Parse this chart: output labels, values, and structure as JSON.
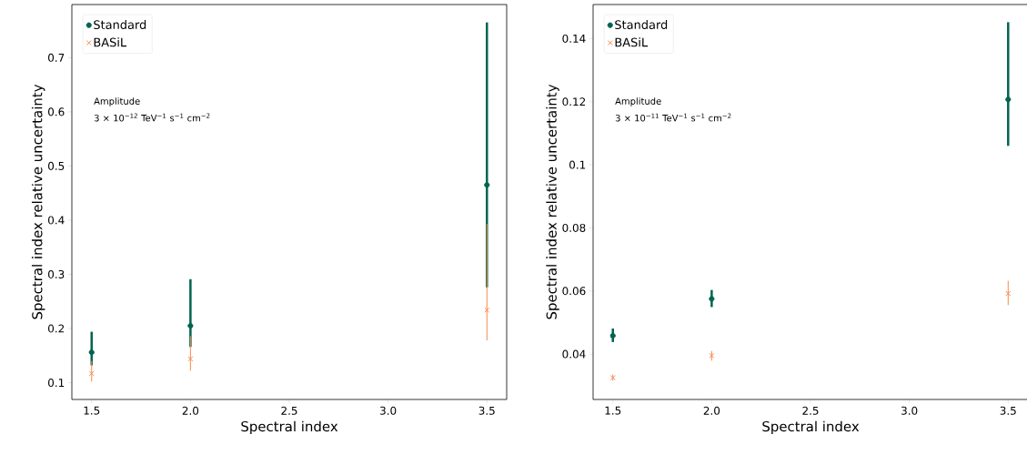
{
  "chart_data": [
    {
      "type": "scatter",
      "xlabel": "Spectral index",
      "ylabel": "Spectral index relative uncertainty",
      "x": [
        1.5,
        2.0,
        3.5
      ],
      "xlim": [
        1.4,
        3.6
      ],
      "ylim": [
        0.069,
        0.798
      ],
      "xticks": [
        {
          "value": 1.5,
          "label": "1.5"
        },
        {
          "value": 2.0,
          "label": "2.0"
        },
        {
          "value": 2.5,
          "label": "2.5"
        },
        {
          "value": 3.0,
          "label": "3.0"
        },
        {
          "value": 3.5,
          "label": "3.5"
        }
      ],
      "yticks": [
        0.1,
        0.2,
        0.3,
        0.4,
        0.5,
        0.6,
        0.7
      ],
      "legend": "top left",
      "annotations": [
        "Amplitude",
        "3 × 10$^{−12}$ TeV$^{−1}$ s$^{−1}$ cm$^{−2}$"
      ],
      "series": [
        {
          "name": "Standard",
          "color": "#006450",
          "marker": "circle",
          "values": [
            0.156,
            0.205,
            0.465
          ],
          "errors": [
            [
              0.132,
              0.194
            ],
            [
              0.166,
              0.291
            ],
            [
              0.276,
              0.765
            ]
          ]
        },
        {
          "name": "BASiL",
          "color": "#f58a4b",
          "marker": "cross",
          "values": [
            0.117,
            0.144,
            0.234
          ],
          "errors": [
            [
              0.102,
              0.14
            ],
            [
              0.122,
              0.186
            ],
            [
              0.178,
              0.393
            ]
          ]
        }
      ]
    },
    {
      "type": "scatter",
      "xlabel": "Spectral index",
      "ylabel": "Spectral index relative uncertainty",
      "x": [
        1.5,
        2.0,
        3.5
      ],
      "xlim": [
        1.4,
        3.6
      ],
      "ylim": [
        0.0256,
        0.1508
      ],
      "xticks": [
        {
          "value": 1.5,
          "label": "1.5"
        },
        {
          "value": 2.0,
          "label": "2.0"
        },
        {
          "value": 2.5,
          "label": "2.5"
        },
        {
          "value": 3.0,
          "label": "3.0"
        },
        {
          "value": 3.5,
          "label": "3.5"
        }
      ],
      "yticks": [
        0.04,
        0.06,
        0.08,
        0.1,
        0.12,
        0.14
      ],
      "legend": "top left",
      "annotations": [
        "Amplitude",
        "3 × 10$^{−11}$ TeV$^{−1}$ s$^{−1}$ cm$^{−2}$"
      ],
      "series": [
        {
          "name": "Standard",
          "color": "#006450",
          "marker": "circle",
          "values": [
            0.0458,
            0.0575,
            0.1207
          ],
          "errors": [
            [
              0.0438,
              0.0481
            ],
            [
              0.0549,
              0.0603
            ],
            [
              0.106,
              0.1452
            ]
          ]
        },
        {
          "name": "BASiL",
          "color": "#f58a4b",
          "marker": "cross",
          "values": [
            0.0325,
            0.0395,
            0.0592
          ],
          "errors": [
            [
              0.0316,
              0.0335
            ],
            [
              0.0379,
              0.041
            ],
            [
              0.0555,
              0.0632
            ]
          ]
        }
      ]
    }
  ]
}
